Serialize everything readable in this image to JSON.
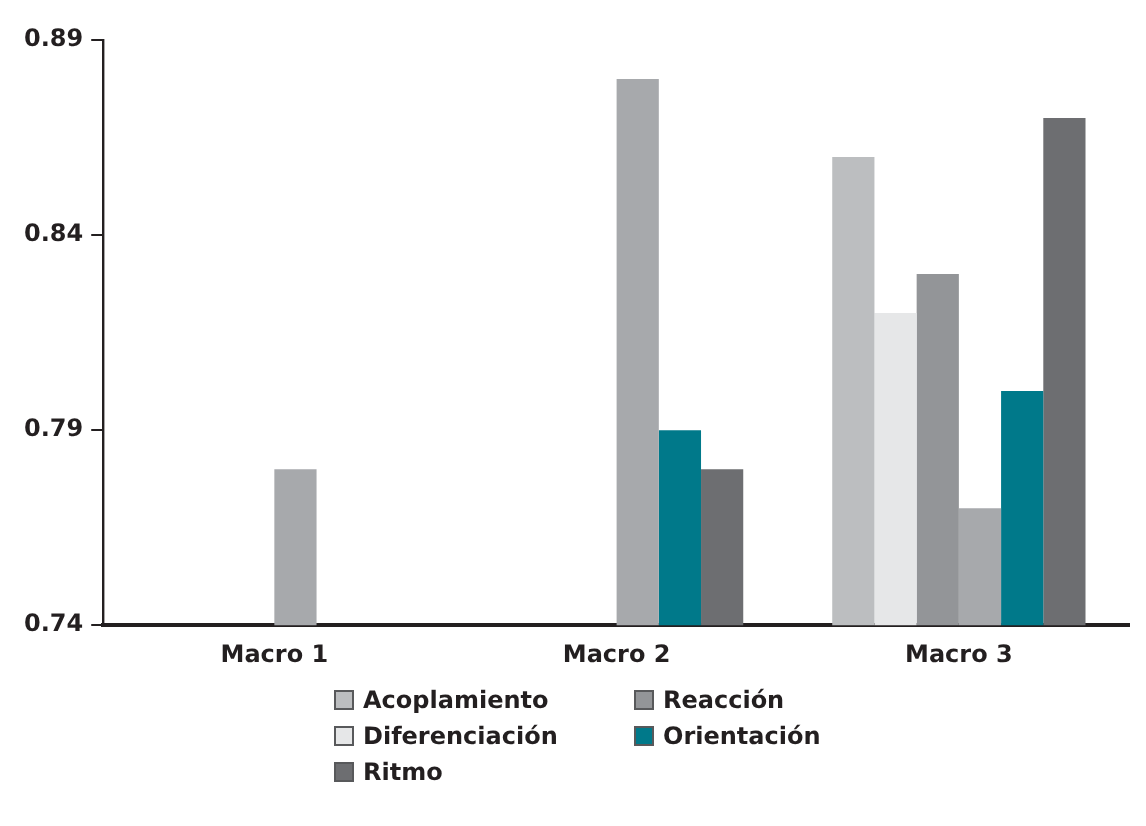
{
  "chart_data": {
    "type": "bar",
    "categories": [
      "Macro 1",
      "Macro 2",
      "Macro 3"
    ],
    "series": [
      {
        "name": "Acoplamiento",
        "color": "#bcbec0",
        "values": [
          null,
          null,
          0.86
        ]
      },
      {
        "name": "Diferenciación",
        "color": "#e6e7e8",
        "values": [
          null,
          null,
          0.82
        ]
      },
      {
        "name": "Reacción",
        "color": "#939598",
        "values": [
          null,
          null,
          0.83
        ]
      },
      {
        "color": "#a7a9ac",
        "values": [
          0.78,
          0.88,
          0.77
        ]
      },
      {
        "name": "Orientación",
        "color": "#00798a",
        "values": [
          null,
          0.79,
          0.8
        ]
      },
      {
        "name": "Ritmo",
        "color": "#6d6e71",
        "values": [
          null,
          0.78,
          0.87
        ]
      }
    ],
    "ylim": [
      0.74,
      0.89
    ],
    "yticks": [
      0.74,
      0.79,
      0.84,
      0.89
    ],
    "grid": false,
    "legend": "bottom"
  }
}
